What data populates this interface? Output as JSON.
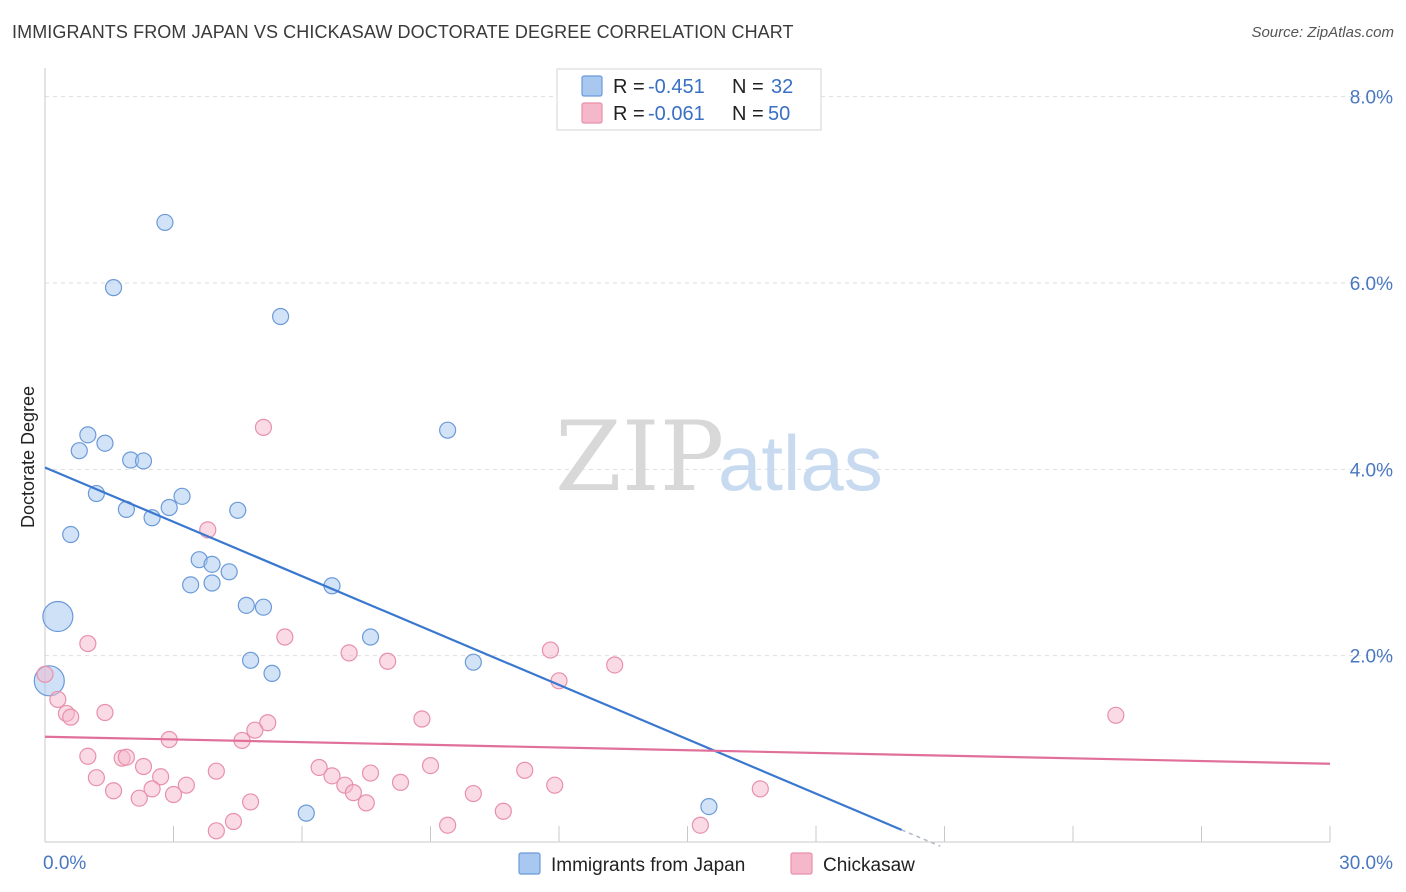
{
  "header": {
    "title": "IMMIGRANTS FROM JAPAN VS CHICKASAW DOCTORATE DEGREE CORRELATION CHART",
    "source": "Source: ZipAtlas.com"
  },
  "watermark": {
    "zip": "ZIP",
    "atlas": "atlas"
  },
  "legend": {
    "rows": [
      {
        "r_label": "R = ",
        "r_value": "-0.451",
        "n_label": "N = ",
        "n_value": "32",
        "color": "#a8c8f0"
      },
      {
        "r_label": "R = ",
        "r_value": "-0.061",
        "n_label": "N = ",
        "n_value": "50",
        "color": "#f5b8cb"
      }
    ]
  },
  "chart_data": {
    "type": "scatter",
    "title": "IMMIGRANTS FROM JAPAN VS CHICKASAW DOCTORATE DEGREE CORRELATION CHART",
    "xlabel": "",
    "ylabel": "Doctorate Degree",
    "xlim": [
      0,
      30
    ],
    "ylim": [
      0,
      8.2
    ],
    "x_tick_labels": [
      "0.0%",
      "30.0%"
    ],
    "y_tick_labels": [
      "2.0%",
      "4.0%",
      "6.0%",
      "8.0%"
    ],
    "y_tick_values": [
      2,
      4,
      6,
      8
    ],
    "grid": true,
    "legend_position": "top-center",
    "series": [
      {
        "name": "Immigrants from Japan",
        "color": "#a8c8f0",
        "stroke": "#6b9ad8",
        "line_color": "#3a78d0",
        "trend": {
          "x": [
            0,
            20
          ],
          "y": [
            4.02,
            0.13
          ]
        },
        "points": [
          {
            "x": 2.8,
            "y": 6.65
          },
          {
            "x": 1.6,
            "y": 5.95
          },
          {
            "x": 5.5,
            "y": 5.64
          },
          {
            "x": 9.4,
            "y": 4.42
          },
          {
            "x": 1.0,
            "y": 4.37
          },
          {
            "x": 0.8,
            "y": 4.2
          },
          {
            "x": 1.4,
            "y": 4.28
          },
          {
            "x": 2.0,
            "y": 4.1
          },
          {
            "x": 2.3,
            "y": 4.09
          },
          {
            "x": 1.2,
            "y": 3.74
          },
          {
            "x": 3.2,
            "y": 3.71
          },
          {
            "x": 1.9,
            "y": 3.57
          },
          {
            "x": 2.9,
            "y": 3.59
          },
          {
            "x": 4.5,
            "y": 3.56
          },
          {
            "x": 2.5,
            "y": 3.48
          },
          {
            "x": 0.6,
            "y": 3.3
          },
          {
            "x": 3.6,
            "y": 3.03
          },
          {
            "x": 3.9,
            "y": 2.98
          },
          {
            "x": 4.3,
            "y": 2.9
          },
          {
            "x": 3.4,
            "y": 2.76
          },
          {
            "x": 3.9,
            "y": 2.78
          },
          {
            "x": 6.7,
            "y": 2.75
          },
          {
            "x": 4.7,
            "y": 2.54
          },
          {
            "x": 5.1,
            "y": 2.52
          },
          {
            "x": 0.3,
            "y": 2.42,
            "big": true
          },
          {
            "x": 7.6,
            "y": 2.2
          },
          {
            "x": 4.8,
            "y": 1.95
          },
          {
            "x": 10.0,
            "y": 1.93
          },
          {
            "x": 5.3,
            "y": 1.81
          },
          {
            "x": 0.1,
            "y": 1.73,
            "big": true
          },
          {
            "x": 15.5,
            "y": 0.38
          },
          {
            "x": 6.1,
            "y": 0.31
          }
        ]
      },
      {
        "name": "Chickasaw",
        "color": "#f5b8cb",
        "stroke": "#e890ab",
        "line_color": "#e0709a",
        "trend": {
          "x": [
            0,
            30
          ],
          "y": [
            1.13,
            0.84
          ]
        },
        "points": [
          {
            "x": 5.1,
            "y": 4.45
          },
          {
            "x": 3.8,
            "y": 3.35
          },
          {
            "x": 1.0,
            "y": 2.13
          },
          {
            "x": 5.6,
            "y": 2.2
          },
          {
            "x": 7.1,
            "y": 2.03
          },
          {
            "x": 8.0,
            "y": 1.94
          },
          {
            "x": 11.8,
            "y": 2.06
          },
          {
            "x": 13.3,
            "y": 1.9
          },
          {
            "x": 12.0,
            "y": 1.73
          },
          {
            "x": 0.0,
            "y": 1.8
          },
          {
            "x": 0.3,
            "y": 1.53
          },
          {
            "x": 0.5,
            "y": 1.38
          },
          {
            "x": 0.6,
            "y": 1.34
          },
          {
            "x": 1.4,
            "y": 1.39
          },
          {
            "x": 8.8,
            "y": 1.32
          },
          {
            "x": 5.2,
            "y": 1.28
          },
          {
            "x": 4.9,
            "y": 1.2
          },
          {
            "x": 2.9,
            "y": 1.1
          },
          {
            "x": 4.6,
            "y": 1.09
          },
          {
            "x": 25.0,
            "y": 1.36
          },
          {
            "x": 1.0,
            "y": 0.92
          },
          {
            "x": 1.8,
            "y": 0.9
          },
          {
            "x": 1.9,
            "y": 0.91
          },
          {
            "x": 2.3,
            "y": 0.81
          },
          {
            "x": 2.7,
            "y": 0.7
          },
          {
            "x": 4.0,
            "y": 0.76
          },
          {
            "x": 6.4,
            "y": 0.8
          },
          {
            "x": 6.7,
            "y": 0.71
          },
          {
            "x": 7.6,
            "y": 0.74
          },
          {
            "x": 9.0,
            "y": 0.82
          },
          {
            "x": 11.2,
            "y": 0.77
          },
          {
            "x": 1.2,
            "y": 0.69
          },
          {
            "x": 7.0,
            "y": 0.61
          },
          {
            "x": 8.3,
            "y": 0.64
          },
          {
            "x": 11.9,
            "y": 0.61
          },
          {
            "x": 3.3,
            "y": 0.61
          },
          {
            "x": 16.7,
            "y": 0.57
          },
          {
            "x": 1.6,
            "y": 0.55
          },
          {
            "x": 2.5,
            "y": 0.57
          },
          {
            "x": 3.0,
            "y": 0.51
          },
          {
            "x": 7.2,
            "y": 0.53
          },
          {
            "x": 10.0,
            "y": 0.52
          },
          {
            "x": 2.2,
            "y": 0.47
          },
          {
            "x": 4.8,
            "y": 0.43
          },
          {
            "x": 7.5,
            "y": 0.42
          },
          {
            "x": 10.7,
            "y": 0.33
          },
          {
            "x": 4.4,
            "y": 0.22
          },
          {
            "x": 9.4,
            "y": 0.18
          },
          {
            "x": 4.0,
            "y": 0.12
          },
          {
            "x": 15.3,
            "y": 0.18
          }
        ]
      }
    ]
  }
}
